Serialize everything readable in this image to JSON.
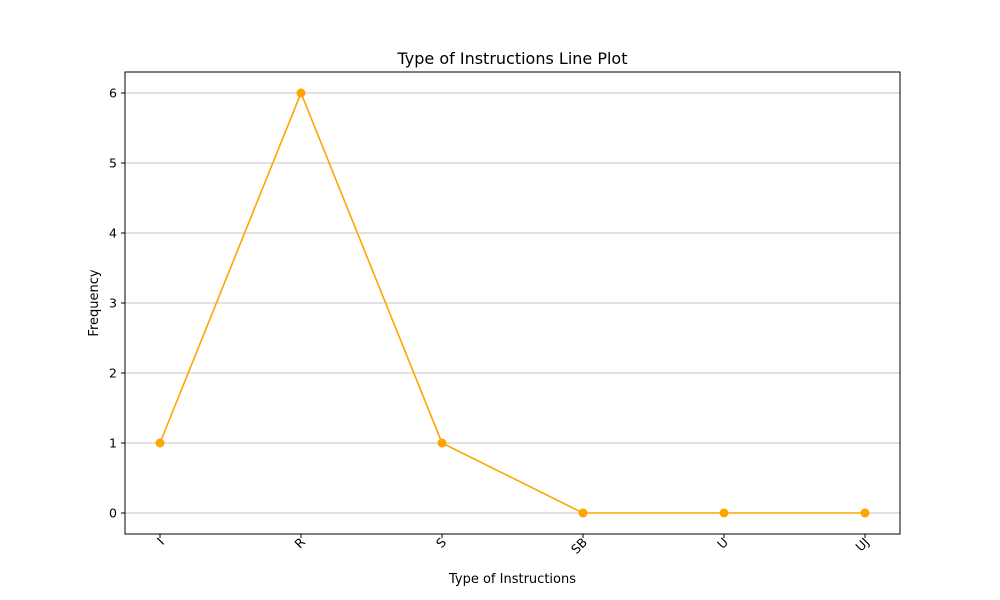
{
  "chart_data": {
    "type": "line",
    "title": "Type of Instructions Line Plot",
    "xlabel": "Type of Instructions",
    "ylabel": "Frequency",
    "categories": [
      "I",
      "R",
      "S",
      "SB",
      "U",
      "UJ"
    ],
    "series": [
      {
        "values": [
          1,
          6,
          1,
          0,
          0,
          0
        ]
      }
    ],
    "ylim": [
      -0.3,
      6.3
    ],
    "yticks": [
      0,
      1,
      2,
      3,
      4,
      5,
      6
    ],
    "grid": "horizontal",
    "x_tick_rotation_deg": 45,
    "colors": {
      "line": "#ffa500",
      "grid": "#b0b0b0",
      "axes": "#000000"
    }
  }
}
